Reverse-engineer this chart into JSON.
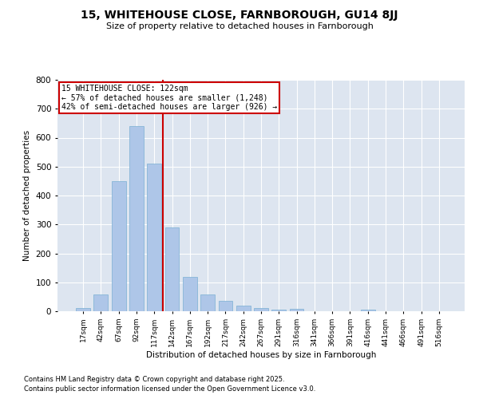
{
  "title": "15, WHITEHOUSE CLOSE, FARNBOROUGH, GU14 8JJ",
  "subtitle": "Size of property relative to detached houses in Farnborough",
  "xlabel": "Distribution of detached houses by size in Farnborough",
  "ylabel": "Number of detached properties",
  "categories": [
    "17sqm",
    "42sqm",
    "67sqm",
    "92sqm",
    "117sqm",
    "142sqm",
    "167sqm",
    "192sqm",
    "217sqm",
    "242sqm",
    "267sqm",
    "291sqm",
    "316sqm",
    "341sqm",
    "366sqm",
    "391sqm",
    "416sqm",
    "441sqm",
    "466sqm",
    "491sqm",
    "516sqm"
  ],
  "values": [
    12,
    57,
    450,
    640,
    510,
    290,
    120,
    57,
    35,
    20,
    10,
    5,
    8,
    0,
    0,
    0,
    5,
    0,
    0,
    0,
    0
  ],
  "bar_color": "#aec6e8",
  "bar_edge_color": "#7aafd4",
  "vline_color": "#cc0000",
  "ylim": [
    0,
    800
  ],
  "yticks": [
    0,
    100,
    200,
    300,
    400,
    500,
    600,
    700,
    800
  ],
  "annotation_title": "15 WHITEHOUSE CLOSE: 122sqm",
  "annotation_line1": "← 57% of detached houses are smaller (1,248)",
  "annotation_line2": "42% of semi-detached houses are larger (926) →",
  "annotation_box_color": "#cc0000",
  "bg_color": "#dde5f0",
  "footnote1": "Contains HM Land Registry data © Crown copyright and database right 2025.",
  "footnote2": "Contains public sector information licensed under the Open Government Licence v3.0."
}
